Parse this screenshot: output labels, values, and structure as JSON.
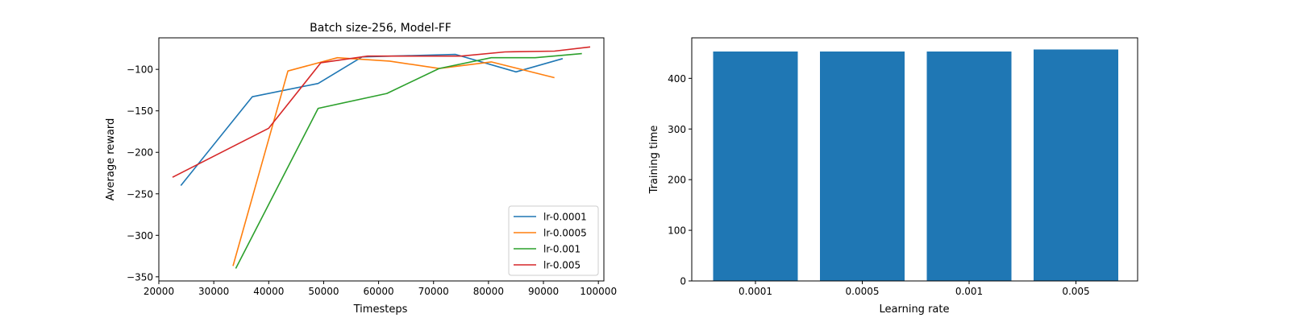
{
  "chart_data": [
    {
      "type": "line",
      "title": "Batch size-256, Model-FF",
      "xlabel": "Timesteps",
      "ylabel": "Average reward",
      "xlim": [
        20000,
        101000
      ],
      "ylim": [
        -355,
        -62
      ],
      "xticks": [
        20000,
        30000,
        40000,
        50000,
        60000,
        70000,
        80000,
        90000,
        100000
      ],
      "xtick_labels": [
        "20000",
        "30000",
        "40000",
        "50000",
        "60000",
        "70000",
        "80000",
        "90000",
        "100000"
      ],
      "yticks": [
        -350,
        -300,
        -250,
        -200,
        -150,
        -100
      ],
      "ytick_labels": [
        "−350",
        "−300",
        "−250",
        "−200",
        "−150",
        "−100"
      ],
      "grid": false,
      "legend_position": "lower-right",
      "series": [
        {
          "name": "lr-0.0001",
          "color": "#1f77b4",
          "points": [
            [
              24000,
              -240
            ],
            [
              37000,
              -133
            ],
            [
              49000,
              -117
            ],
            [
              57000,
              -85
            ],
            [
              74000,
              -82
            ],
            [
              85000,
              -103
            ],
            [
              93500,
              -87
            ]
          ]
        },
        {
          "name": "lr-0.0005",
          "color": "#ff7f0e",
          "points": [
            [
              33500,
              -337
            ],
            [
              43500,
              -102
            ],
            [
              52500,
              -86
            ],
            [
              62000,
              -90
            ],
            [
              71000,
              -99
            ],
            [
              80500,
              -91
            ],
            [
              92000,
              -110
            ]
          ]
        },
        {
          "name": "lr-0.001",
          "color": "#2ca02c",
          "points": [
            [
              34000,
              -340
            ],
            [
              49000,
              -147
            ],
            [
              61500,
              -129
            ],
            [
              71000,
              -99
            ],
            [
              80500,
              -86
            ],
            [
              88500,
              -86
            ],
            [
              97000,
              -81
            ]
          ]
        },
        {
          "name": "lr-0.005",
          "color": "#d62728",
          "points": [
            [
              22500,
              -230
            ],
            [
              40000,
              -171
            ],
            [
              49500,
              -92
            ],
            [
              58000,
              -84
            ],
            [
              75000,
              -84
            ],
            [
              83000,
              -79
            ],
            [
              92000,
              -78
            ],
            [
              98500,
              -73
            ]
          ]
        }
      ]
    },
    {
      "type": "bar",
      "title": "",
      "xlabel": "Learning rate",
      "ylabel": "Training time",
      "categories": [
        "0.0001",
        "0.0005",
        "0.001",
        "0.005"
      ],
      "values": [
        453,
        453,
        453,
        457
      ],
      "ylim": [
        0,
        480
      ],
      "yticks": [
        0,
        100,
        200,
        300,
        400
      ],
      "ytick_labels": [
        "0",
        "100",
        "200",
        "300",
        "400"
      ],
      "bar_color": "#1f77b4",
      "grid": false
    }
  ]
}
